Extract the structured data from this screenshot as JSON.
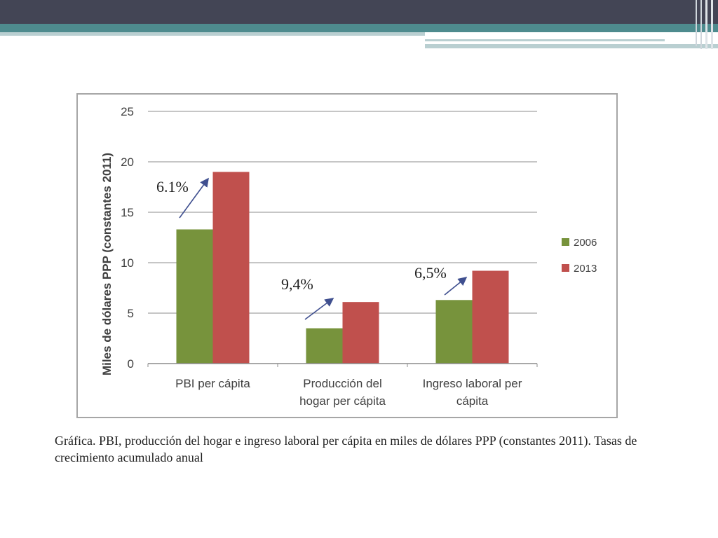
{
  "slide": {
    "caption": "Gráfica. PBI, producción del hogar e ingreso laboral per cápita en miles de dólares PPP (constantes 2011). Tasas de crecimiento acumulado anual",
    "colors": {
      "topbar": "#434555",
      "accent": "#4e8b8e",
      "accent_light": "#b9cfd1"
    }
  },
  "chart_data": {
    "type": "bar",
    "ylabel": "Miles de dólares PPP (constantes 2011)",
    "xlabel": "",
    "ylim": [
      0,
      25
    ],
    "yticks": [
      0,
      5,
      10,
      15,
      20,
      25
    ],
    "grid": true,
    "legend_position": "right",
    "categories": [
      [
        "PBI per cápita"
      ],
      [
        "Producción del",
        "hogar per cápita"
      ],
      [
        "Ingreso laboral per",
        "cápita"
      ]
    ],
    "series": [
      {
        "name": "2006",
        "color": "#77933c",
        "values": [
          13.3,
          3.5,
          6.3
        ]
      },
      {
        "name": "2013",
        "color": "#c0504d",
        "values": [
          19.0,
          6.1,
          9.2
        ]
      }
    ],
    "annotations": [
      "6.1%",
      "9,4%",
      "6,5%"
    ]
  }
}
